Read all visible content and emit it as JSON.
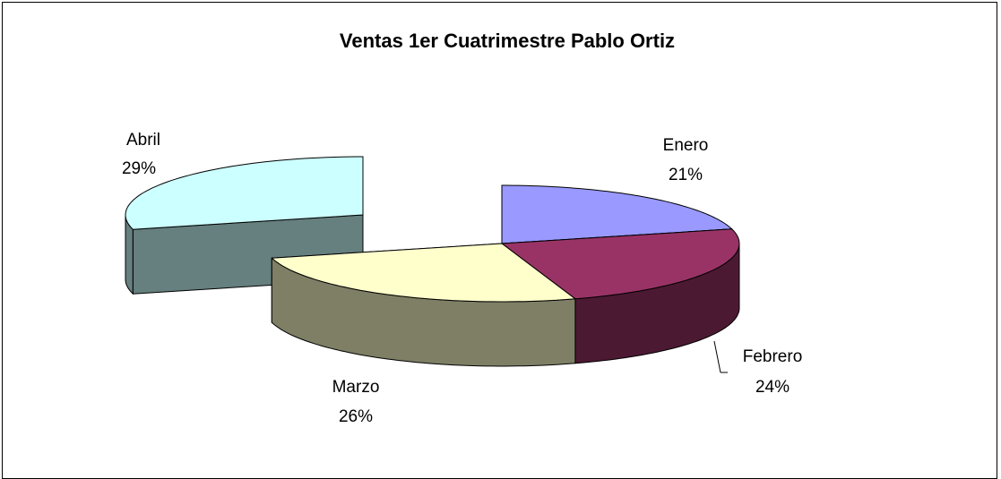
{
  "chart_data": {
    "type": "pie3d",
    "title": "Ventas 1er Cuatrimestre Pablo Ortiz",
    "categories": [
      "Enero",
      "Febrero",
      "Marzo",
      "Abril"
    ],
    "values": [
      21,
      24,
      26,
      29
    ],
    "value_labels": [
      "21%",
      "24%",
      "26%",
      "29%"
    ],
    "colors": [
      "#9999ff",
      "#993366",
      "#ffffcc",
      "#ccffff"
    ]
  }
}
